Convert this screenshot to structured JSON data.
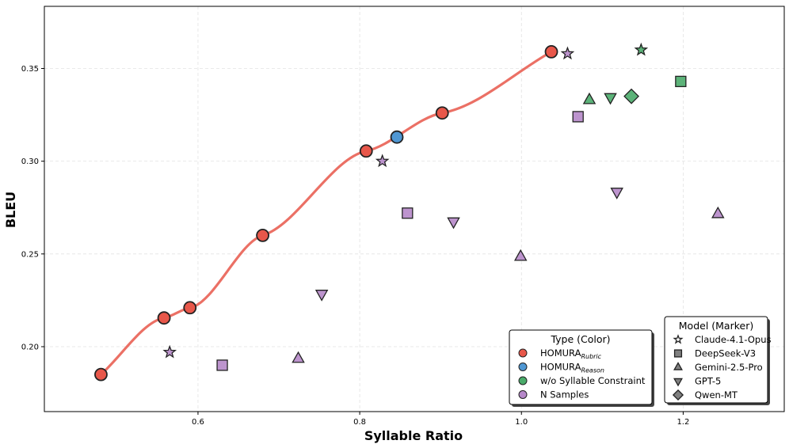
{
  "chart_data": {
    "type": "scatter",
    "title": "",
    "xlabel": "Syllable  Ratio",
    "ylabel": "BLEU",
    "xlim": [
      0.41,
      1.325
    ],
    "ylim": [
      0.165,
      0.3835
    ],
    "xticks": [
      0.6,
      0.8,
      1.0,
      1.2
    ],
    "xtick_labels": [
      "0.6",
      "0.8",
      "1.0",
      "1.2"
    ],
    "yticks": [
      0.2,
      0.25,
      0.3,
      0.35
    ],
    "ytick_labels": [
      "0.20",
      "0.25",
      "0.30",
      "0.35"
    ],
    "grid": true,
    "colors": {
      "rubric": "#e8574a",
      "reason": "#4f97d3",
      "wo_syllable": "#4aab6a",
      "n_samples": "#b688c9",
      "curve": "#e8574a"
    },
    "curve": {
      "name": "HOMURA Rubric frontier",
      "x": [
        0.48,
        0.558,
        0.59,
        0.68,
        0.808,
        0.902,
        1.037
      ],
      "y": [
        0.185,
        0.2155,
        0.221,
        0.26,
        0.3055,
        0.326,
        0.359
      ]
    },
    "series": [
      {
        "name": "HOMURA Rubric",
        "color_key": "rubric",
        "points": [
          {
            "x": 0.48,
            "y": 0.185,
            "marker": "circle"
          },
          {
            "x": 0.558,
            "y": 0.2155,
            "marker": "circle"
          },
          {
            "x": 0.59,
            "y": 0.221,
            "marker": "circle"
          },
          {
            "x": 0.68,
            "y": 0.26,
            "marker": "circle"
          },
          {
            "x": 0.808,
            "y": 0.3055,
            "marker": "circle"
          },
          {
            "x": 0.902,
            "y": 0.326,
            "marker": "circle"
          },
          {
            "x": 1.037,
            "y": 0.359,
            "marker": "circle"
          }
        ]
      },
      {
        "name": "HOMURA Reason",
        "color_key": "reason",
        "points": [
          {
            "x": 0.846,
            "y": 0.313,
            "marker": "circle"
          }
        ]
      },
      {
        "name": "w/o Syllable Constraint",
        "color_key": "wo_syllable",
        "points": [
          {
            "x": 1.148,
            "y": 0.36,
            "marker": "star"
          },
          {
            "x": 1.197,
            "y": 0.343,
            "marker": "square"
          },
          {
            "x": 1.084,
            "y": 0.333,
            "marker": "triangle-up"
          },
          {
            "x": 1.11,
            "y": 0.3345,
            "marker": "triangle-down"
          },
          {
            "x": 1.136,
            "y": 0.335,
            "marker": "diamond"
          }
        ]
      },
      {
        "name": "N Samples",
        "color_key": "n_samples",
        "points": [
          {
            "x": 0.565,
            "y": 0.197,
            "marker": "star"
          },
          {
            "x": 0.828,
            "y": 0.3,
            "marker": "star"
          },
          {
            "x": 1.057,
            "y": 0.358,
            "marker": "star"
          },
          {
            "x": 0.63,
            "y": 0.19,
            "marker": "square"
          },
          {
            "x": 0.859,
            "y": 0.272,
            "marker": "square"
          },
          {
            "x": 1.07,
            "y": 0.324,
            "marker": "square"
          },
          {
            "x": 0.724,
            "y": 0.1935,
            "marker": "triangle-up"
          },
          {
            "x": 0.999,
            "y": 0.2485,
            "marker": "triangle-up"
          },
          {
            "x": 1.243,
            "y": 0.2715,
            "marker": "triangle-up"
          },
          {
            "x": 0.753,
            "y": 0.2285,
            "marker": "triangle-down"
          },
          {
            "x": 0.916,
            "y": 0.2675,
            "marker": "triangle-down"
          },
          {
            "x": 1.118,
            "y": 0.2835,
            "marker": "triangle-down"
          }
        ]
      }
    ],
    "legend_type": {
      "title": "Type (Color)",
      "placement": "bottom-right",
      "entries": [
        {
          "label": "HOMURA",
          "sub": "Rubric",
          "color_key": "rubric"
        },
        {
          "label": "HOMURA",
          "sub": "Reason",
          "color_key": "reason"
        },
        {
          "label": "w/o Syllable Constraint",
          "sub": "",
          "color_key": "wo_syllable"
        },
        {
          "label": "N Samples",
          "sub": "",
          "color_key": "n_samples"
        }
      ]
    },
    "legend_model": {
      "title": "Model (Marker)",
      "placement": "bottom-right",
      "entries": [
        {
          "label": "Claude-4.1-Opus",
          "marker": "star"
        },
        {
          "label": "DeepSeek-V3",
          "marker": "square"
        },
        {
          "label": "Gemini-2.5-Pro",
          "marker": "triangle-up"
        },
        {
          "label": "GPT-5",
          "marker": "triangle-down"
        },
        {
          "label": "Qwen-MT",
          "marker": "diamond"
        }
      ]
    }
  }
}
